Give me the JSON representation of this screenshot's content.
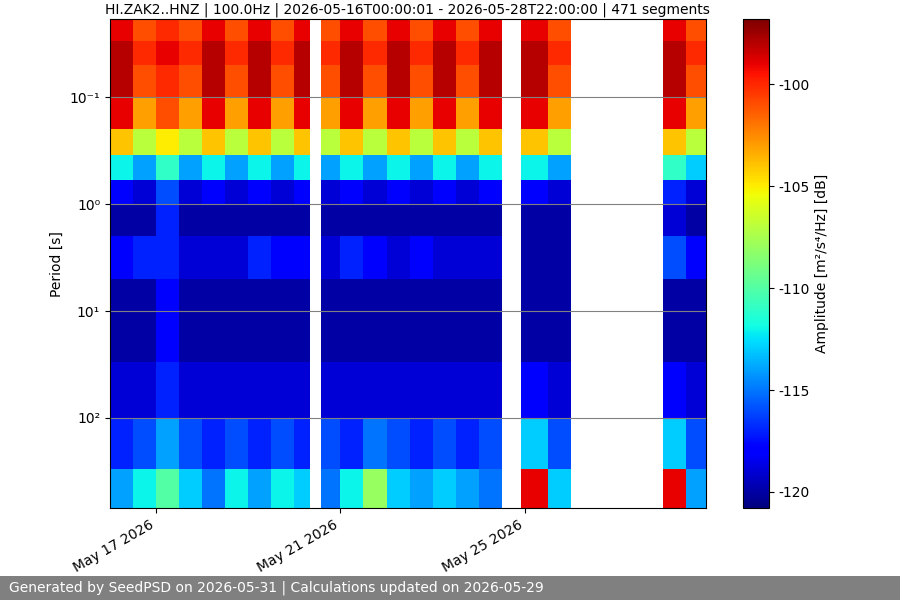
{
  "chart_data": {
    "type": "heatmap",
    "title": "HI.ZAK2..HNZ | 100.0Hz | 2026-05-16T00:00:01 - 2026-05-28T22:00:00 | 471 segments",
    "y_label": "Period [s]",
    "footer": "Generated by SeedPSD on 2026-05-31 | Calculations updated on 2026-05-29",
    "log": "y",
    "grid": true,
    "xlim": [
      "2026-05-16T00:00",
      "2026-05-28T22:00"
    ],
    "xticks": [
      {
        "value": "2026-05-17T00:00",
        "label": "May 17 2026"
      },
      {
        "value": "2026-05-21T00:00",
        "label": "May 21 2026"
      },
      {
        "value": "2026-05-25T00:00",
        "label": "May 25 2026"
      }
    ],
    "ylim": [
      700,
      0.0186
    ],
    "yticks": [
      {
        "value": 0.1,
        "label": "10⁻¹"
      },
      {
        "value": 1,
        "label": "10⁰"
      },
      {
        "value": 10,
        "label": "10¹"
      },
      {
        "value": 100,
        "label": "10²"
      }
    ],
    "x_edges": [
      "2026-05-16T00:00",
      "2026-05-16T12:00",
      "2026-05-17T00:00",
      "2026-05-17T12:00",
      "2026-05-18T00:00",
      "2026-05-18T12:00",
      "2026-05-19T00:00",
      "2026-05-19T12:00",
      "2026-05-20T00:00",
      "2026-05-20T08:00",
      "2026-05-20T14:00",
      "2026-05-21T00:00",
      "2026-05-21T12:00",
      "2026-05-22T00:00",
      "2026-05-22T12:00",
      "2026-05-23T00:00",
      "2026-05-23T12:00",
      "2026-05-24T00:00",
      "2026-05-24T12:00",
      "2026-05-24T22:00",
      "2026-05-25T12:00",
      "2026-05-26T00:00",
      "2026-05-28T00:00",
      "2026-05-28T12:00",
      "2026-05-28T22:00"
    ],
    "y_edges": [
      0.0186,
      0.03,
      0.05,
      0.1,
      0.2,
      0.35,
      0.6,
      1,
      2,
      5,
      10,
      30,
      100,
      300,
      700
    ],
    "cells": [
      [
        -99,
        -101,
        -100,
        -101,
        -99,
        -101,
        -99,
        -101,
        -99,
        null,
        -101,
        -99,
        -101,
        -99,
        -101,
        -99,
        -101,
        -99,
        null,
        -99,
        -101,
        null,
        -99,
        -101
      ],
      [
        -98,
        -100,
        -99,
        -100,
        -98,
        -100,
        -98,
        -100,
        -98,
        null,
        -100,
        -98,
        -100,
        -98,
        -100,
        -98,
        -100,
        -98,
        null,
        -98,
        -100,
        null,
        -98,
        -100
      ],
      [
        -98,
        -101,
        -100,
        -101,
        -98,
        -101,
        -98,
        -101,
        -98,
        null,
        -101,
        -98,
        -101,
        -98,
        -101,
        -98,
        -101,
        -98,
        null,
        -98,
        -101,
        null,
        -98,
        -101
      ],
      [
        -99,
        -103,
        -101,
        -103,
        -99,
        -103,
        -99,
        -103,
        -99,
        null,
        -103,
        -99,
        -103,
        -99,
        -103,
        -99,
        -103,
        -99,
        null,
        -99,
        -103,
        null,
        -99,
        -103
      ],
      [
        -104,
        -107,
        -105,
        -107,
        -104,
        -107,
        -104,
        -107,
        -104,
        null,
        -107,
        -104,
        -107,
        -104,
        -107,
        -104,
        -107,
        -104,
        null,
        -104,
        -107,
        null,
        -104,
        -107
      ],
      [
        -112,
        -114,
        -111,
        -114,
        -112,
        -114,
        -112,
        -114,
        -112,
        null,
        -114,
        -112,
        -114,
        -112,
        -114,
        -112,
        -114,
        -112,
        null,
        -112,
        -114,
        null,
        -111,
        -113
      ],
      [
        -118,
        -119,
        -116,
        -119,
        -118,
        -119,
        -118,
        -119,
        -118,
        null,
        -119,
        -118,
        -119,
        -118,
        -119,
        -118,
        -119,
        -118,
        null,
        -118,
        -119,
        null,
        -117,
        -119
      ],
      [
        -120,
        -120,
        -117,
        -120,
        -120,
        -120,
        -120,
        -120,
        -120,
        null,
        -120,
        -120,
        -120,
        -120,
        -120,
        -120,
        -120,
        -120,
        null,
        -120,
        -120,
        null,
        -119,
        -120
      ],
      [
        -118,
        -117,
        -117,
        -119,
        -119,
        -119,
        -117,
        -118,
        -118,
        null,
        -119,
        -117,
        -118,
        -119,
        -118,
        -119,
        -119,
        -119,
        null,
        -120,
        -120,
        null,
        -116,
        -118
      ],
      [
        -120,
        -120,
        -118,
        -120,
        -120,
        -120,
        -120,
        -120,
        -120,
        null,
        -120,
        -120,
        -120,
        -120,
        -120,
        -120,
        -120,
        -120,
        null,
        -120,
        -120,
        null,
        -120,
        -120
      ],
      [
        -120,
        -120,
        -118,
        -120,
        -120,
        -120,
        -120,
        -120,
        -120,
        null,
        -120,
        -120,
        -120,
        -120,
        -120,
        -120,
        -120,
        -120,
        null,
        -120,
        -120,
        null,
        -120,
        -120
      ],
      [
        -119,
        -119,
        -117,
        -119,
        -119,
        -119,
        -119,
        -119,
        -119,
        null,
        -119,
        -119,
        -119,
        -119,
        -119,
        -119,
        -119,
        -119,
        null,
        -118,
        -119,
        null,
        -118,
        -119
      ],
      [
        -117,
        -116,
        -114,
        -116,
        -117,
        -116,
        -117,
        -116,
        -117,
        null,
        -116,
        -117,
        -115,
        -116,
        -117,
        -116,
        -117,
        -116,
        null,
        -113,
        -116,
        null,
        -113,
        -116
      ],
      [
        -114,
        -112,
        -110,
        -113,
        -115,
        -112,
        -114,
        -112,
        -113,
        null,
        -115,
        -112,
        -108,
        -113,
        -114,
        -113,
        -114,
        -115,
        null,
        -99,
        -113,
        null,
        -99,
        -114
      ]
    ],
    "colorbar": {
      "label": "Amplitude [m²/s⁴/Hz] [dB]",
      "lim": [
        -120.8,
        -96.8
      ],
      "ticks": [
        -120,
        -115,
        -110,
        -105,
        -100
      ]
    }
  }
}
